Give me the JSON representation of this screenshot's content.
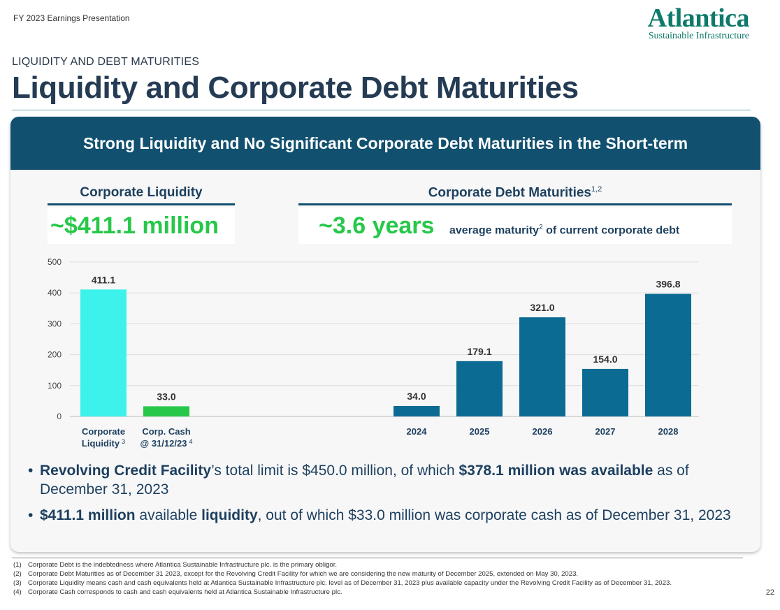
{
  "header": {
    "presentation": "FY 2023 Earnings Presentation"
  },
  "logo": {
    "name": "Atlantica",
    "tagline": "Sustainable Infrastructure"
  },
  "section": "LIQUIDITY AND DEBT MATURITIES",
  "title": "Liquidity and Corporate Debt Maturities",
  "banner": "Strong Liquidity and No Significant Corporate Debt Maturities in the Short-term",
  "liquidity_panel": {
    "heading": "Corporate Liquidity",
    "kpi": "~$411.1 million"
  },
  "debt_panel": {
    "heading": "Corporate Debt Maturities",
    "heading_sup": "1,2",
    "kpi": "~3.6 years",
    "kpi_desc_a": "average maturity",
    "kpi_desc_sup": "2",
    "kpi_desc_b": " of current corporate debt"
  },
  "chart_data": {
    "type": "bar",
    "ylim": [
      0,
      500
    ],
    "yticks": [
      0,
      100,
      200,
      300,
      400,
      500
    ],
    "grid": true,
    "bars": [
      {
        "category": "Corporate Liquidity",
        "label_lines": [
          "Corporate",
          "Liquidity"
        ],
        "sup": "3",
        "value": 411.1,
        "value_label": "411.1",
        "color": "#3ef2ec"
      },
      {
        "category": "Corp. Cash @ 31/12/23",
        "label_lines": [
          "Corp. Cash",
          "@ 31/12/23"
        ],
        "sup": "4",
        "value": 33.0,
        "value_label": "33.0",
        "color": "#27c84a"
      },
      {
        "category": "2024",
        "label_lines": [
          "2024"
        ],
        "sup": "",
        "value": 34.0,
        "value_label": "34.0",
        "color": "#0b6b93"
      },
      {
        "category": "2025",
        "label_lines": [
          "2025"
        ],
        "sup": "",
        "value": 179.1,
        "value_label": "179.1",
        "color": "#0b6b93"
      },
      {
        "category": "2026",
        "label_lines": [
          "2026"
        ],
        "sup": "",
        "value": 321.0,
        "value_label": "321.0",
        "color": "#0b6b93"
      },
      {
        "category": "2027",
        "label_lines": [
          "2027"
        ],
        "sup": "",
        "value": 154.0,
        "value_label": "154.0",
        "color": "#0b6b93"
      },
      {
        "category": "2028",
        "label_lines": [
          "2028"
        ],
        "sup": "",
        "value": 396.8,
        "value_label": "396.8",
        "color": "#0b6b93"
      }
    ]
  },
  "bullets": [
    {
      "b1": "Revolving Credit Facility",
      "t1": "’s total limit is $450.0 million, of which ",
      "b2": "$378.1 million was available",
      "t2": " as of December 31, 2023"
    },
    {
      "b1": "$411.1 million",
      "t1": " available ",
      "b2": "liquidity",
      "t2": ", out of which $33.0 million was corporate cash as of December 31, 2023"
    }
  ],
  "footnotes": [
    {
      "n": "(1)",
      "text": "Corporate Debt is the indebtedness where Atlantica Sustainable Infrastructure plc. is the primary obligor."
    },
    {
      "n": "(2)",
      "text": "Corporate Debt Maturities as of December 31 2023, except for the Revolving Credit Facility for which we are considering the new maturity of December 2025, extended on May 30, 2023."
    },
    {
      "n": "(3)",
      "text": "Corporate Liquidity means cash and cash equivalents held at Atlantica Sustainable Infrastructure plc. level as of December 31, 2023 plus available capacity under the Revolving Credit Facility as of December 31, 2023."
    },
    {
      "n": "(4)",
      "text": "Corporate Cash corresponds to cash and cash equivalents held at Atlantica Sustainable Infrastructure plc."
    }
  ],
  "page_number": "22",
  "colors": {
    "brand_dark": "#11506f",
    "accent_green": "#27c84a",
    "logo_green": "#0e7a6b"
  }
}
